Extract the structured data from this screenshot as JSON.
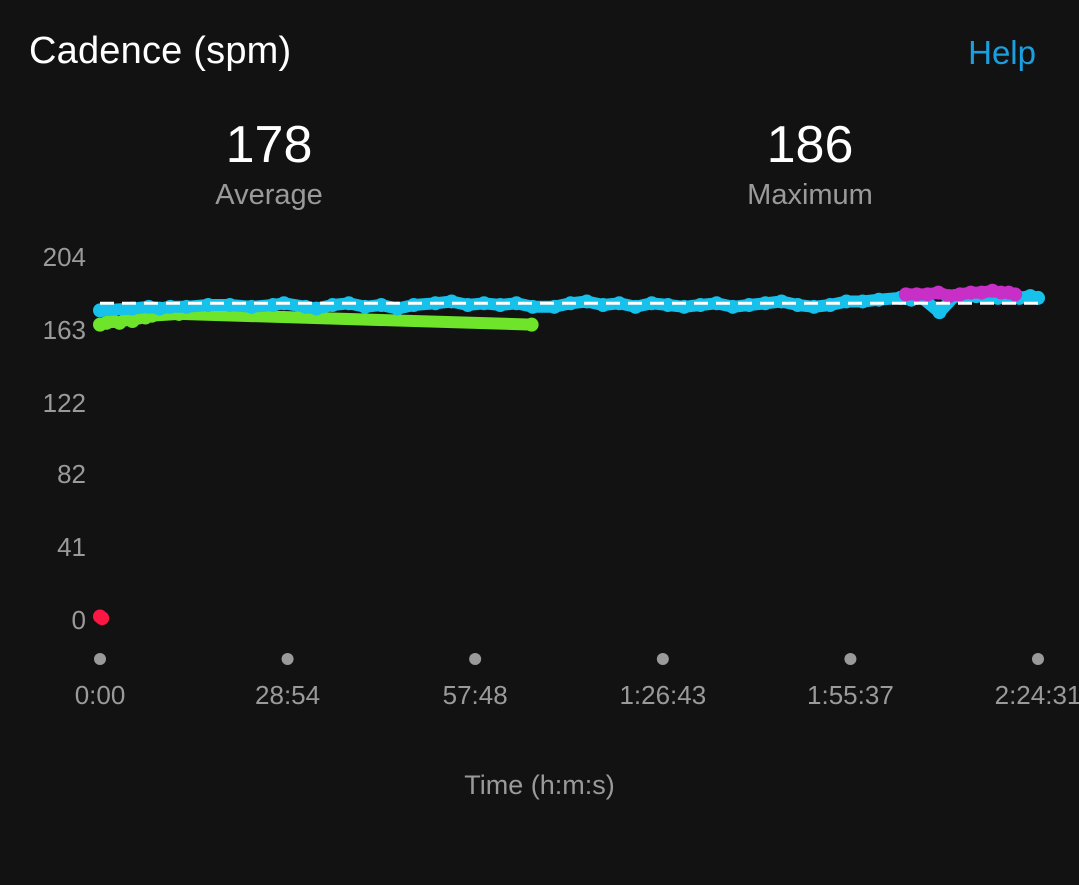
{
  "header": {
    "title": "Cadence (spm)",
    "help_label": "Help"
  },
  "stats": {
    "average": {
      "value": "178",
      "label": "Average"
    },
    "maximum": {
      "value": "186",
      "label": "Maximum"
    }
  },
  "colors": {
    "background": "#121212",
    "help_link": "#1a9fe0",
    "zone_green": "#6ee52a",
    "zone_blue": "#16c1ec",
    "zone_purple": "#c82fc6",
    "zone_red": "#ff1744",
    "average_line": "#ffffff",
    "axis_text": "#9a9a9a",
    "x_tick_dot": "#9a9a9a"
  },
  "chart_data": {
    "type": "scatter",
    "title": "Cadence (spm)",
    "xlabel": "Time (h:m:s)",
    "ylabel": "",
    "ylim": [
      0,
      204
    ],
    "xlim_seconds": [
      0,
      8671
    ],
    "y_ticks": [
      "204",
      "163",
      "122",
      "82",
      "41",
      "0"
    ],
    "y_tick_values": [
      204,
      163,
      122,
      82,
      41,
      0
    ],
    "x_ticks": [
      "0:00",
      "28:54",
      "57:48",
      "1:26:43",
      "1:55:37",
      "2:24:31"
    ],
    "x_tick_values_seconds": [
      0,
      1734,
      3468,
      5203,
      6937,
      8671
    ],
    "grid": false,
    "average_line": 178,
    "series": [
      {
        "color": "zone_red",
        "points": [
          [
            0,
            2
          ],
          [
            20,
            1
          ]
        ]
      },
      {
        "color": "zone_green",
        "points": [
          [
            0,
            166
          ],
          [
            60,
            167
          ],
          [
            120,
            168
          ],
          [
            180,
            167
          ],
          [
            240,
            169
          ],
          [
            300,
            168
          ],
          [
            360,
            170
          ],
          [
            420,
            170
          ],
          [
            480,
            171
          ],
          [
            730,
            172
          ],
          [
            3990,
            166
          ]
        ]
      },
      {
        "color": "zone_blue",
        "points": [
          [
            0,
            174
          ],
          [
            300,
            175
          ],
          [
            450,
            176
          ],
          [
            550,
            175
          ],
          [
            650,
            176
          ],
          [
            800,
            176
          ],
          [
            1000,
            177
          ],
          [
            1200,
            177
          ],
          [
            1400,
            176
          ],
          [
            1600,
            177
          ],
          [
            1700,
            178
          ],
          [
            1900,
            176
          ],
          [
            2000,
            175
          ],
          [
            2150,
            177
          ],
          [
            2300,
            178
          ],
          [
            2450,
            176
          ],
          [
            2600,
            177
          ],
          [
            2750,
            175
          ],
          [
            2900,
            177
          ],
          [
            3100,
            178
          ],
          [
            3250,
            179
          ],
          [
            3400,
            177
          ],
          [
            3550,
            178
          ],
          [
            3700,
            177
          ],
          [
            3850,
            178
          ],
          [
            4000,
            176
          ],
          [
            4200,
            176
          ],
          [
            4350,
            178
          ],
          [
            4500,
            179
          ],
          [
            4650,
            177
          ],
          [
            4800,
            178
          ],
          [
            4950,
            176
          ],
          [
            5100,
            178
          ],
          [
            5250,
            177
          ],
          [
            5400,
            176
          ],
          [
            5550,
            177
          ],
          [
            5700,
            178
          ],
          [
            5850,
            176
          ],
          [
            6000,
            177
          ],
          [
            6150,
            178
          ],
          [
            6300,
            179
          ],
          [
            6450,
            177
          ],
          [
            6600,
            176
          ],
          [
            6750,
            177
          ],
          [
            6900,
            179
          ],
          [
            7050,
            179
          ],
          [
            7200,
            180
          ],
          [
            7400,
            181
          ],
          [
            7500,
            180
          ],
          [
            7600,
            181
          ],
          [
            7760,
            173
          ],
          [
            7900,
            182
          ],
          [
            8100,
            182
          ],
          [
            8300,
            181
          ],
          [
            8500,
            181
          ],
          [
            8600,
            182
          ],
          [
            8671,
            181
          ]
        ]
      },
      {
        "color": "zone_purple",
        "points": [
          [
            7450,
            183
          ],
          [
            7550,
            183
          ],
          [
            7650,
            183
          ],
          [
            7750,
            184
          ],
          [
            7850,
            182
          ],
          [
            7950,
            183
          ],
          [
            8050,
            184
          ],
          [
            8150,
            184
          ],
          [
            8250,
            185
          ],
          [
            8330,
            184
          ],
          [
            8400,
            184
          ],
          [
            8460,
            183
          ]
        ]
      }
    ]
  }
}
